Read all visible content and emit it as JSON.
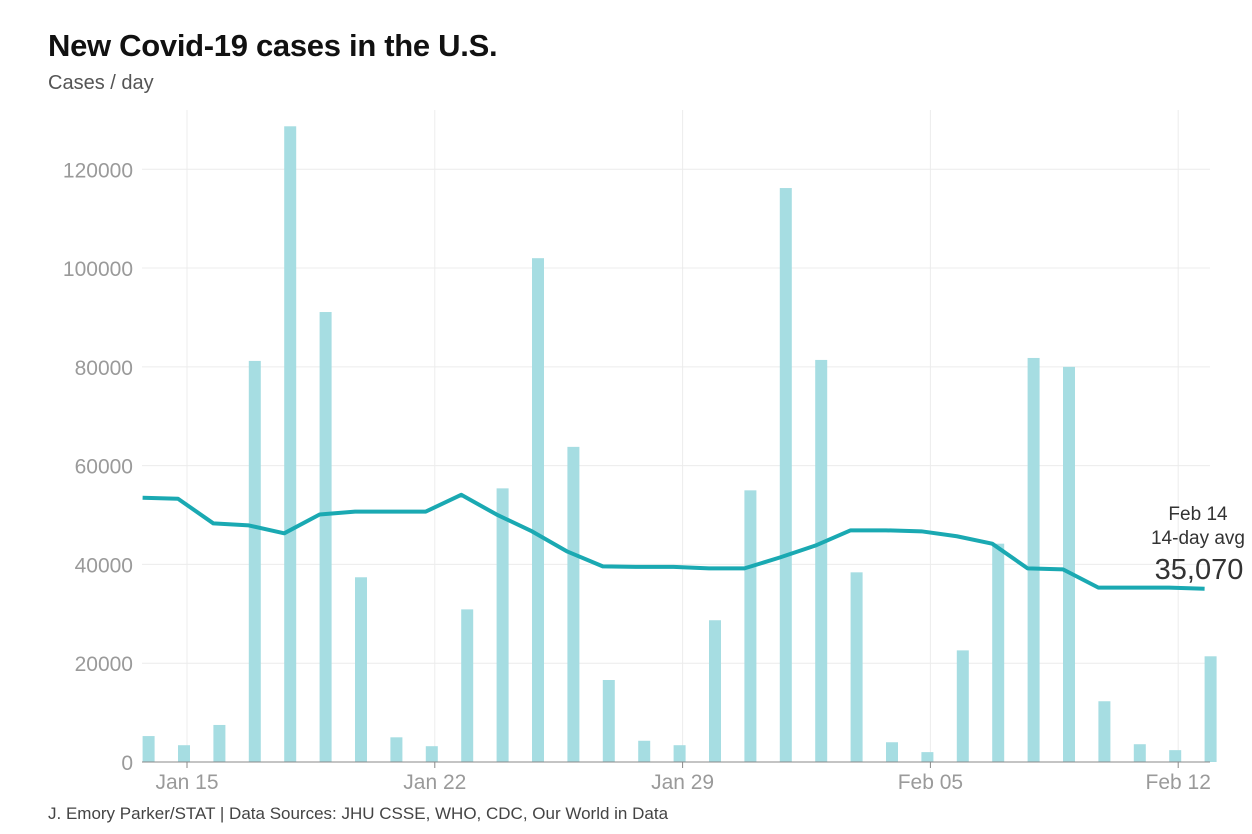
{
  "chart_data": {
    "type": "bar",
    "title": "New Covid-19 cases in the U.S.",
    "subtitle": "Cases / day",
    "source": "J. Emory Parker/STAT | Data Sources: JHU CSSE, WHO, CDC, Our World in Data",
    "x": [
      "2020-01-14",
      "2020-01-15",
      "2020-01-16",
      "2020-01-17",
      "2020-01-18",
      "2020-01-19",
      "2020-01-20",
      "2020-01-21",
      "2020-01-22",
      "2020-01-23",
      "2020-01-24",
      "2020-01-25",
      "2020-01-26",
      "2020-01-27",
      "2020-01-28",
      "2020-01-29",
      "2020-01-30",
      "2020-01-31",
      "2020-02-01",
      "2020-02-02",
      "2020-02-03",
      "2020-02-04",
      "2020-02-05",
      "2020-02-06",
      "2020-02-07",
      "2020-02-08",
      "2020-02-09",
      "2020-02-10",
      "2020-02-11",
      "2020-02-12",
      "2020-02-13"
    ],
    "series": [
      {
        "type": "bar",
        "values": [
          5250,
          3400,
          7500,
          81200,
          128700,
          91100,
          37400,
          5000,
          3200,
          30900,
          55400,
          102000,
          63800,
          16600,
          4300,
          3400,
          28700,
          55000,
          116200,
          81400,
          38400,
          4000,
          2000,
          22600,
          44200,
          81800,
          80000,
          12300,
          3600,
          2400,
          21400
        ],
        "color": "#a6dde2"
      },
      {
        "type": "line",
        "values": [
          53500,
          53300,
          48300,
          47900,
          46300,
          50100,
          50700,
          50700,
          50700,
          54100,
          50100,
          46700,
          42600,
          39600,
          39500,
          39500,
          39200,
          39200,
          41400,
          43800,
          46900,
          46900,
          46700,
          45700,
          44200,
          39200,
          39000,
          35300,
          35300,
          35300,
          35070
        ],
        "color": "#1aa9b2"
      }
    ],
    "x_ticks": [
      "Jan 15",
      "Jan 22",
      "Jan 29",
      "Feb 05",
      "Feb 12"
    ],
    "y_ticks": [
      0,
      20000,
      40000,
      60000,
      80000,
      100000,
      120000
    ],
    "ylim": [
      0,
      132000
    ],
    "grid": true,
    "annotation": {
      "date": "Feb 14",
      "label": "14-day avg",
      "value": "35,070"
    }
  }
}
